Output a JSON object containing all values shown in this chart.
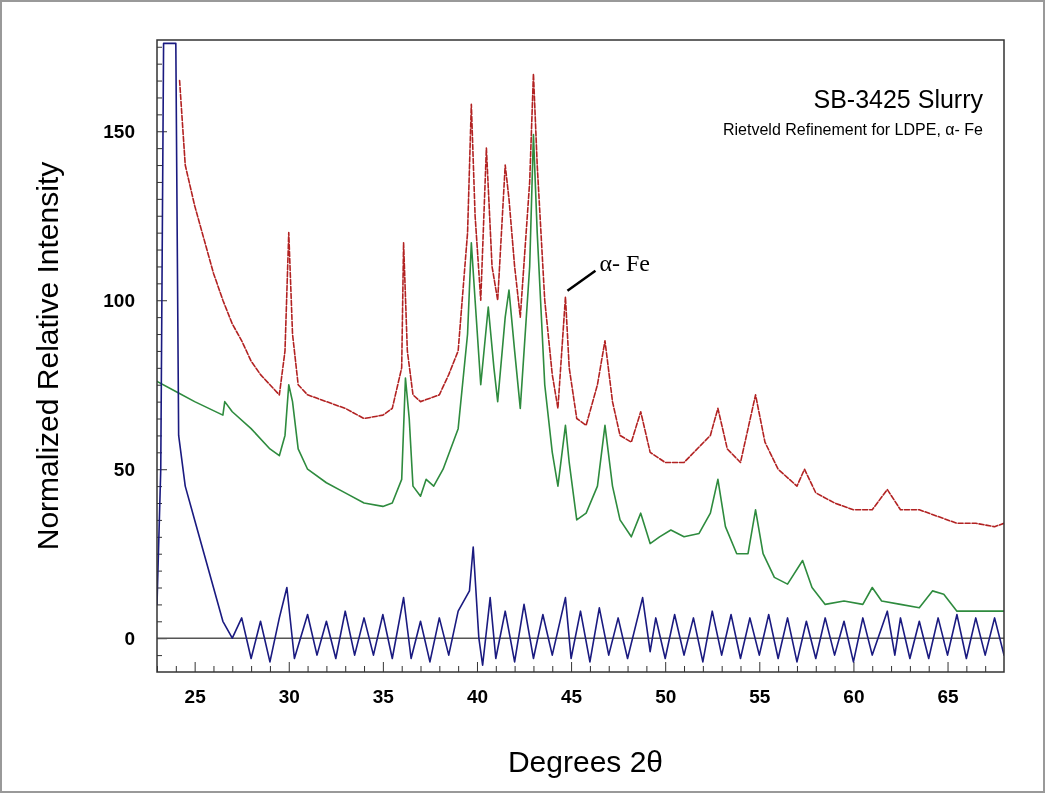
{
  "chart_data": {
    "type": "line",
    "title": "SB-3425 Slurry",
    "subtitle": "Rietveld Refinement for LDPE, α- Fe",
    "xlabel": "Degrees 2θ",
    "ylabel": "Normalized Relative Intensity",
    "xlim": [
      23,
      68
    ],
    "ylim": [
      -10,
      177
    ],
    "xticks": [
      {
        "value": 23,
        "label": null
      },
      {
        "value": 24,
        "label": null
      },
      25,
      {
        "value": 26,
        "label": null
      },
      {
        "value": 27,
        "label": null
      },
      {
        "value": 28,
        "label": null
      },
      {
        "value": 29,
        "label": null
      },
      30,
      {
        "value": 31,
        "label": null
      },
      {
        "value": 32,
        "label": null
      },
      {
        "value": 33,
        "label": null
      },
      {
        "value": 34,
        "label": null
      },
      35,
      {
        "value": 36,
        "label": null
      },
      {
        "value": 37,
        "label": null
      },
      {
        "value": 38,
        "label": null
      },
      {
        "value": 39,
        "label": null
      },
      40,
      {
        "value": 41,
        "label": null
      },
      {
        "value": 42,
        "label": null
      },
      {
        "value": 43,
        "label": null
      },
      {
        "value": 44,
        "label": null
      },
      45,
      {
        "value": 46,
        "label": null
      },
      {
        "value": 47,
        "label": null
      },
      {
        "value": 48,
        "label": null
      },
      {
        "value": 49,
        "label": null
      },
      50,
      {
        "value": 51,
        "label": null
      },
      {
        "value": 52,
        "label": null
      },
      {
        "value": 53,
        "label": null
      },
      {
        "value": 54,
        "label": null
      },
      55,
      {
        "value": 56,
        "label": null
      },
      {
        "value": 57,
        "label": null
      },
      {
        "value": 58,
        "label": null
      },
      {
        "value": 59,
        "label": null
      },
      60,
      {
        "value": 61,
        "label": null
      },
      {
        "value": 62,
        "label": null
      },
      {
        "value": 63,
        "label": null
      },
      {
        "value": 64,
        "label": null
      },
      65,
      {
        "value": 66,
        "label": null
      },
      {
        "value": 67,
        "label": null
      }
    ],
    "yticks": [
      {
        "value": -5,
        "label": null
      },
      0,
      {
        "value": 5,
        "label": null
      },
      {
        "value": 10,
        "label": null
      },
      {
        "value": 15,
        "label": null
      },
      {
        "value": 20,
        "label": null
      },
      {
        "value": 25,
        "label": null
      },
      {
        "value": 30,
        "label": null
      },
      {
        "value": 35,
        "label": null
      },
      {
        "value": 40,
        "label": null
      },
      {
        "value": 45,
        "label": null
      },
      50,
      {
        "value": 55,
        "label": null
      },
      {
        "value": 60,
        "label": null
      },
      {
        "value": 65,
        "label": null
      },
      {
        "value": 70,
        "label": null
      },
      {
        "value": 75,
        "label": null
      },
      {
        "value": 80,
        "label": null
      },
      {
        "value": 85,
        "label": null
      },
      {
        "value": 90,
        "label": null
      },
      {
        "value": 95,
        "label": null
      },
      100,
      {
        "value": 105,
        "label": null
      },
      {
        "value": 110,
        "label": null
      },
      {
        "value": 115,
        "label": null
      },
      {
        "value": 120,
        "label": null
      },
      {
        "value": 125,
        "label": null
      },
      {
        "value": 130,
        "label": null
      },
      {
        "value": 135,
        "label": null
      },
      {
        "value": 140,
        "label": null
      },
      {
        "value": 145,
        "label": null
      },
      150,
      {
        "value": 155,
        "label": null
      },
      {
        "value": 160,
        "label": null
      },
      {
        "value": 165,
        "label": null
      },
      {
        "value": 170,
        "label": null
      },
      {
        "value": 175,
        "label": null
      }
    ],
    "grid": false,
    "marker": "none",
    "ref_lines": [
      {
        "axis": "y",
        "value": 0,
        "color": "#555555"
      }
    ],
    "annotations": [
      {
        "text": "α- Fe",
        "x": 44.7,
        "y": 101
      }
    ],
    "series": [
      {
        "color": "#b22222",
        "line_style": "dashed",
        "x": [
          24.2,
          24.5,
          25,
          25.5,
          26,
          26.5,
          27,
          27.5,
          28,
          28.5,
          29,
          29.5,
          29.8,
          30,
          30.2,
          30.5,
          31,
          32,
          33,
          34,
          35,
          35.5,
          36,
          36.1,
          36.3,
          36.6,
          37,
          38,
          38.5,
          39,
          39.5,
          39.7,
          39.9,
          40.2,
          40.5,
          40.8,
          41.1,
          41.5,
          41.7,
          42,
          42.3,
          42.8,
          43,
          43.2,
          43.6,
          44,
          44.3,
          44.7,
          44.9,
          45.3,
          45.8,
          46.4,
          46.8,
          47.2,
          47.6,
          48.2,
          48.7,
          49.2,
          50,
          51,
          52.4,
          52.8,
          53.3,
          54,
          54.8,
          55.3,
          56,
          57,
          57.4,
          58,
          59,
          60,
          61,
          61.8,
          62.5,
          63.5,
          64.5,
          65.5,
          66.5,
          67.5,
          68
        ],
        "values": [
          165,
          140,
          128,
          118,
          108,
          100,
          93,
          88,
          82,
          78,
          75,
          72,
          85,
          120,
          90,
          75,
          72,
          70,
          68,
          65,
          66,
          68,
          80,
          117,
          85,
          72,
          70,
          72,
          78,
          85,
          120,
          158,
          125,
          100,
          145,
          110,
          100,
          140,
          130,
          110,
          95,
          135,
          167,
          140,
          100,
          78,
          68,
          101,
          80,
          65,
          63,
          75,
          88,
          70,
          60,
          58,
          67,
          55,
          52,
          52,
          60,
          68,
          56,
          52,
          72,
          58,
          50,
          45,
          50,
          43,
          40,
          38,
          38,
          44,
          38,
          38,
          36,
          34,
          34,
          33,
          34
        ]
      },
      {
        "color": "#2e8b3e",
        "line_style": "solid",
        "x": [
          23,
          24,
          25,
          26.5,
          26.6,
          27,
          28,
          29,
          29.5,
          29.8,
          30,
          30.2,
          30.5,
          31,
          32,
          33,
          34,
          35,
          35.5,
          36,
          36.2,
          36.4,
          36.6,
          37,
          37.3,
          37.7,
          38.2,
          39,
          39.5,
          39.7,
          39.9,
          40.2,
          40.6,
          40.9,
          41.1,
          41.5,
          41.7,
          42,
          42.3,
          42.8,
          43,
          43.2,
          43.6,
          44,
          44.3,
          44.7,
          44.9,
          45.3,
          45.8,
          46.4,
          46.8,
          47.2,
          47.6,
          48.2,
          48.7,
          49.2,
          49.7,
          50.3,
          51,
          51.8,
          52.4,
          52.8,
          53.2,
          53.8,
          54.4,
          54.8,
          55.2,
          55.8,
          56.5,
          57.3,
          57.8,
          58.5,
          59.5,
          60.5,
          61,
          61.5,
          62.5,
          63.5,
          64.2,
          64.8,
          65.5,
          68
        ],
        "values": [
          76,
          73,
          70,
          66,
          70,
          67,
          62,
          56,
          54,
          60,
          75,
          70,
          56,
          50,
          46,
          43,
          40,
          39,
          40,
          47,
          77,
          65,
          45,
          42,
          47,
          45,
          50,
          62,
          90,
          117,
          100,
          75,
          98,
          80,
          70,
          95,
          103,
          85,
          68,
          110,
          149,
          120,
          75,
          55,
          45,
          63,
          52,
          35,
          37,
          45,
          63,
          45,
          35,
          30,
          37,
          28,
          30,
          32,
          30,
          31,
          37,
          47,
          33,
          25,
          25,
          38,
          25,
          18,
          16,
          23,
          15,
          10,
          11,
          10,
          15,
          11,
          10,
          9,
          14,
          13,
          8,
          8
        ]
      },
      {
        "color": "#1a1a80",
        "line_style": "solid",
        "x": [
          23,
          23.2,
          23.35,
          24,
          24.15,
          24.5,
          25,
          25.5,
          26,
          26.5,
          27,
          27.5,
          28,
          28.5,
          29,
          29.5,
          29.9,
          30.3,
          31,
          31.5,
          32,
          32.5,
          33,
          33.5,
          34,
          34.5,
          35,
          35.5,
          36.1,
          36.5,
          37,
          37.5,
          38,
          38.5,
          39,
          39.6,
          39.8,
          40.1,
          40.3,
          40.7,
          41,
          41.5,
          42,
          42.5,
          43,
          43.5,
          44,
          44.7,
          45,
          45.5,
          46,
          46.5,
          47,
          47.5,
          48,
          48.8,
          49.2,
          49.5,
          50,
          50.5,
          51,
          51.5,
          52,
          52.5,
          53,
          53.5,
          54,
          54.5,
          55,
          55.5,
          56,
          56.5,
          57,
          57.5,
          58,
          58.5,
          59,
          59.5,
          60,
          60.5,
          61,
          61.8,
          62.2,
          62.5,
          63,
          63.5,
          64,
          64.5,
          65,
          65.5,
          66,
          66.5,
          67,
          67.5,
          68
        ],
        "values": [
          10,
          50,
          176,
          176,
          60,
          45,
          35,
          25,
          15,
          5,
          0,
          6,
          -6,
          5,
          -7,
          6,
          15,
          -6,
          7,
          -5,
          5,
          -6,
          8,
          -5,
          6,
          -5,
          7,
          -6,
          12,
          -6,
          5,
          -7,
          6,
          -5,
          8,
          14,
          27,
          0,
          -8,
          12,
          -6,
          8,
          -7,
          10,
          -6,
          7,
          -5,
          12,
          -6,
          8,
          -7,
          9,
          -5,
          6,
          -6,
          12,
          -4,
          6,
          -6,
          7,
          -5,
          6,
          -7,
          8,
          -5,
          7,
          -6,
          6,
          -5,
          7,
          -6,
          6,
          -7,
          5,
          -6,
          6,
          -5,
          5,
          -7,
          6,
          -5,
          8,
          -5,
          6,
          -6,
          5,
          -6,
          6,
          -5,
          7,
          -6,
          6,
          -5,
          6,
          -5
        ]
      }
    ]
  }
}
